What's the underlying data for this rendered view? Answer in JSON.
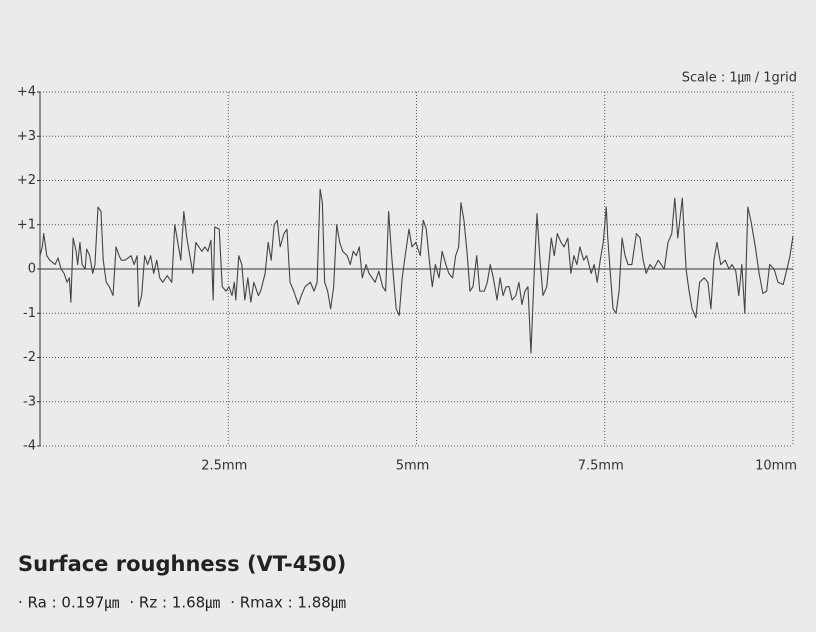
{
  "chart_data": {
    "type": "line",
    "annotation": "Scale : 1㎛ / 1grid",
    "title": "Surface roughness (VT-450)",
    "stats": [
      "· Ra : 0.197㎛",
      "· Rz : 1.68㎛",
      "· Rmax : 1.88㎛"
    ],
    "xlim": [
      0,
      10
    ],
    "xticks": [
      {
        "value": 2.5,
        "label": "2.5mm"
      },
      {
        "value": 5,
        "label": "5mm"
      },
      {
        "value": 7.5,
        "label": "7.5mm"
      },
      {
        "value": 10,
        "label": "10mm"
      }
    ],
    "ylim": [
      -4,
      4
    ],
    "yticks": [
      {
        "value": 4,
        "label": "+4"
      },
      {
        "value": 3,
        "label": "+3"
      },
      {
        "value": 2,
        "label": "+2"
      },
      {
        "value": 1,
        "label": "+1"
      },
      0,
      -1,
      -2,
      -3,
      -4
    ],
    "grid": true,
    "series": [
      {
        "color": "#444444",
        "x": [
          0,
          0.03,
          0.05,
          0.09,
          0.13,
          0.2,
          0.24,
          0.28,
          0.32,
          0.36,
          0.39,
          0.41,
          0.44,
          0.48,
          0.5,
          0.53,
          0.56,
          0.6,
          0.62,
          0.66,
          0.7,
          0.73,
          0.77,
          0.81,
          0.84,
          0.88,
          0.92,
          0.97,
          1.01,
          1.05,
          1.08,
          1.13,
          1.21,
          1.25,
          1.29,
          1.31,
          1.35,
          1.39,
          1.43,
          1.47,
          1.51,
          1.55,
          1.59,
          1.63,
          1.69,
          1.75,
          1.79,
          1.83,
          1.87,
          1.91,
          1.95,
          1.99,
          2.03,
          2.07,
          2.11,
          2.15,
          2.19,
          2.23,
          2.27,
          2.3,
          2.32,
          2.38,
          2.42,
          2.47,
          2.51,
          2.55,
          2.58,
          2.6,
          2.64,
          2.68,
          2.72,
          2.76,
          2.8,
          2.84,
          2.9,
          2.93,
          2.99,
          3.03,
          3.07,
          3.11,
          3.15,
          3.19,
          3.24,
          3.28,
          3.32,
          3.37,
          3.43,
          3.47,
          3.52,
          3.59,
          3.64,
          3.68,
          3.72,
          3.75,
          3.78,
          3.82,
          3.86,
          3.9,
          3.94,
          3.98,
          4.02,
          4.08,
          4.12,
          4.16,
          4.2,
          4.24,
          4.28,
          4.33,
          4.37,
          4.41,
          4.45,
          4.5,
          4.55,
          4.59,
          4.63,
          4.67,
          4.73,
          4.77,
          4.81,
          4.85,
          4.9,
          4.94,
          4.99,
          5.05,
          5.09,
          5.13,
          5.17,
          5.21,
          5.25,
          5.3,
          5.34,
          5.39,
          5.43,
          5.48,
          5.52,
          5.56,
          5.59,
          5.63,
          5.67,
          5.71,
          5.75,
          5.8,
          5.84,
          5.9,
          5.94,
          5.98,
          6.02,
          6.07,
          6.11,
          6.15,
          6.19,
          6.23,
          6.27,
          6.32,
          6.36,
          6.4,
          6.44,
          6.48,
          6.52,
          6.56,
          6.6,
          6.64,
          6.68,
          6.73,
          6.79,
          6.83,
          6.87,
          6.92,
          6.96,
          7.01,
          7.05,
          7.09,
          7.13,
          7.17,
          7.22,
          7.26,
          7.32,
          7.36,
          7.4,
          7.44,
          7.48,
          7.52,
          7.54,
          7.57,
          7.61,
          7.65,
          7.69,
          7.73,
          7.77,
          7.81,
          7.86,
          7.92,
          7.97,
          8.01,
          8.05,
          8.1,
          8.15,
          8.21,
          8.25,
          8.29,
          8.34,
          8.39,
          8.43,
          8.47,
          8.53,
          8.58,
          8.62,
          8.66,
          8.71,
          8.76,
          8.82,
          8.87,
          8.91,
          8.95,
          8.99,
          9.04,
          9.1,
          9.15,
          9.19,
          9.24,
          9.28,
          9.32,
          9.36,
          9.4,
          9.44,
          9.5,
          9.55,
          9.6,
          9.65,
          9.69,
          9.75,
          9.8,
          9.87,
          9.92,
          9.96,
          10
        ],
        "values": [
          0.3,
          0.5,
          0.8,
          0.3,
          0.2,
          0.1,
          0.25,
          0,
          -0.1,
          -0.3,
          -0.2,
          -0.75,
          0.7,
          0.4,
          0.1,
          0.6,
          0.1,
          0,
          0.45,
          0.3,
          -0.1,
          0.1,
          1.4,
          1.3,
          0.2,
          -0.3,
          -0.4,
          -0.6,
          0.5,
          0.3,
          0.2,
          0.2,
          0.3,
          0.1,
          0.3,
          -0.85,
          -0.6,
          0.3,
          0.1,
          0.3,
          -0.1,
          0.2,
          -0.2,
          -0.3,
          -0.15,
          -0.3,
          1.0,
          0.6,
          0.2,
          1.3,
          0.7,
          0.3,
          -0.1,
          0.6,
          0.5,
          0.4,
          0.5,
          0.4,
          0.65,
          -0.7,
          0.95,
          0.9,
          -0.4,
          -0.5,
          -0.4,
          -0.6,
          -0.3,
          -0.7,
          0.3,
          0.1,
          -0.7,
          -0.2,
          -0.75,
          -0.3,
          -0.6,
          -0.5,
          -0.1,
          0.6,
          0.2,
          1.0,
          1.1,
          0.5,
          0.8,
          0.9,
          -0.3,
          -0.5,
          -0.8,
          -0.6,
          -0.4,
          -0.3,
          -0.5,
          -0.3,
          1.8,
          1.5,
          -0.3,
          -0.5,
          -0.9,
          -0.4,
          1.0,
          0.6,
          0.4,
          0.3,
          0.1,
          0.4,
          0.3,
          0.5,
          -0.2,
          0.1,
          -0.1,
          -0.2,
          -0.3,
          -0.05,
          -0.4,
          -0.5,
          1.3,
          0.3,
          -0.9,
          -1.05,
          -0.2,
          0.3,
          0.9,
          0.5,
          0.6,
          0.3,
          1.1,
          0.9,
          0.2,
          -0.4,
          0.1,
          -0.2,
          0.4,
          0.1,
          -0.1,
          -0.2,
          0.3,
          0.5,
          1.5,
          1.1,
          0.4,
          -0.5,
          -0.4,
          0.3,
          -0.5,
          -0.5,
          -0.3,
          0.1,
          -0.2,
          -0.7,
          -0.2,
          -0.6,
          -0.4,
          -0.4,
          -0.7,
          -0.6,
          -0.3,
          -0.8,
          -0.5,
          -0.4,
          -1.9,
          -0.2,
          1.25,
          0.2,
          -0.6,
          -0.4,
          0.7,
          0.3,
          0.8,
          0.6,
          0.5,
          0.7,
          -0.1,
          0.3,
          0.1,
          0.5,
          0.2,
          0.3,
          -0.1,
          0.1,
          -0.3,
          0.2,
          0.6,
          1.4,
          0.7,
          0,
          -0.9,
          -1.0,
          -0.5,
          0.7,
          0.3,
          0.1,
          0.1,
          0.8,
          0.7,
          0.2,
          -0.1,
          0.1,
          0,
          0.2,
          0.1,
          0,
          0.6,
          0.8,
          1.6,
          0.7,
          1.6,
          0,
          -0.5,
          -0.9,
          -1.1,
          -0.3,
          -0.2,
          -0.3,
          -0.9,
          0.2,
          0.6,
          0.1,
          0.2,
          0,
          0.1,
          -0.05,
          -0.6,
          0.1,
          -1.0,
          1.4,
          1.1,
          0.5,
          -0.1,
          -0.55,
          -0.5,
          0.1,
          0,
          -0.3,
          -0.35,
          0,
          0.3,
          0.75
        ]
      }
    ]
  }
}
